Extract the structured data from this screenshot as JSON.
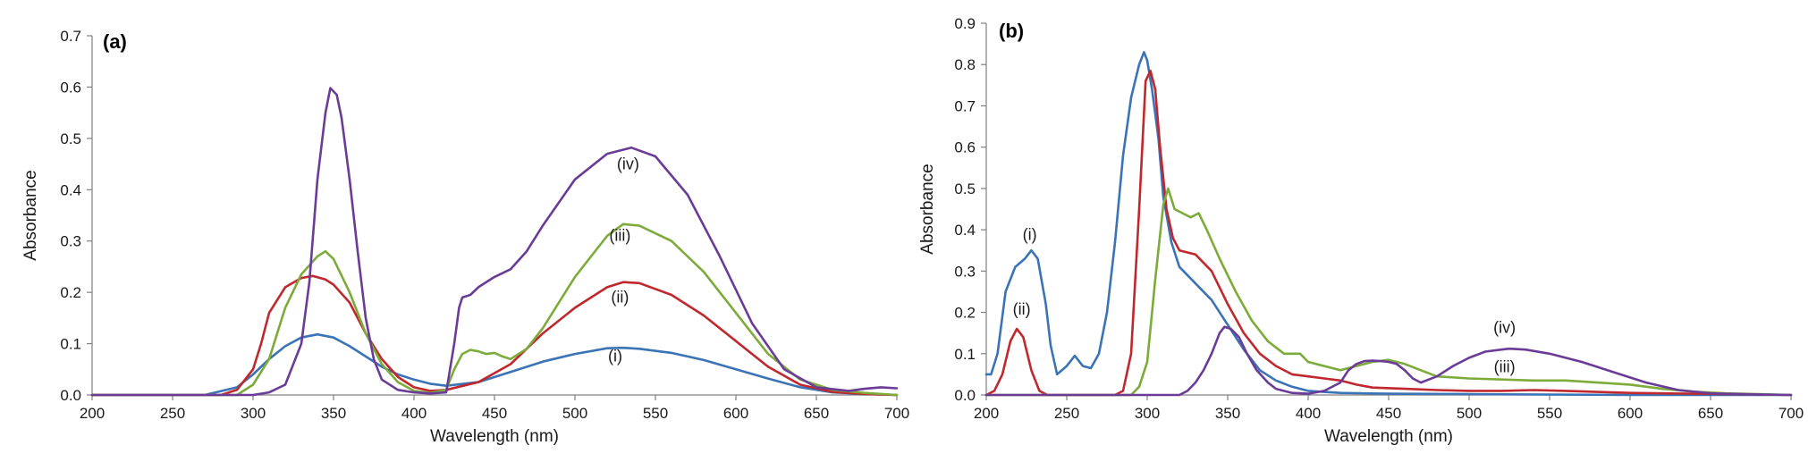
{
  "chart_data": [
    {
      "type": "line",
      "panel_label": "(a)",
      "xlabel": "Wavelength (nm)",
      "ylabel": "Absorbance",
      "xlim": [
        200,
        700
      ],
      "ylim": [
        0,
        0.7
      ],
      "xticks": [
        "200",
        "250",
        "300",
        "350",
        "400",
        "450",
        "500",
        "550",
        "600",
        "650",
        "700"
      ],
      "yticks": [
        "0.0",
        "0.1",
        "0.2",
        "0.3",
        "0.4",
        "0.5",
        "0.6",
        "0.7"
      ],
      "grid": false,
      "series": [
        {
          "name": "(i)",
          "color": "#3a73b6",
          "label_at": [
            525,
            0.065
          ],
          "x": [
            200,
            270,
            290,
            300,
            310,
            320,
            330,
            340,
            350,
            360,
            370,
            380,
            390,
            400,
            410,
            420,
            440,
            460,
            480,
            500,
            520,
            530,
            540,
            560,
            580,
            600,
            620,
            640,
            660,
            680,
            700
          ],
          "y": [
            0,
            0,
            0.015,
            0.04,
            0.07,
            0.095,
            0.112,
            0.118,
            0.112,
            0.095,
            0.075,
            0.055,
            0.04,
            0.03,
            0.022,
            0.018,
            0.025,
            0.045,
            0.065,
            0.08,
            0.091,
            0.092,
            0.09,
            0.082,
            0.068,
            0.05,
            0.032,
            0.015,
            0.005,
            0.002,
            0
          ]
        },
        {
          "name": "(ii)",
          "color": "#c0282d",
          "label_at": [
            528,
            0.18
          ],
          "x": [
            200,
            280,
            290,
            300,
            305,
            310,
            320,
            330,
            337,
            345,
            350,
            360,
            370,
            380,
            390,
            400,
            410,
            420,
            440,
            460,
            480,
            500,
            520,
            530,
            540,
            560,
            580,
            600,
            620,
            640,
            660,
            680,
            700
          ],
          "y": [
            0,
            0,
            0.01,
            0.05,
            0.1,
            0.16,
            0.21,
            0.228,
            0.232,
            0.225,
            0.215,
            0.18,
            0.12,
            0.07,
            0.035,
            0.015,
            0.008,
            0.01,
            0.025,
            0.06,
            0.12,
            0.17,
            0.21,
            0.22,
            0.218,
            0.195,
            0.155,
            0.105,
            0.055,
            0.02,
            0.006,
            0.002,
            0
          ]
        },
        {
          "name": "(iii)",
          "color": "#7cab3a",
          "label_at": [
            528,
            0.3
          ],
          "x": [
            200,
            290,
            300,
            310,
            320,
            330,
            340,
            345,
            350,
            360,
            370,
            380,
            390,
            400,
            410,
            420,
            425,
            430,
            435,
            440,
            445,
            450,
            455,
            460,
            470,
            480,
            500,
            520,
            530,
            540,
            560,
            580,
            600,
            620,
            640,
            660,
            680,
            700
          ],
          "y": [
            0,
            0,
            0.02,
            0.07,
            0.17,
            0.235,
            0.27,
            0.28,
            0.265,
            0.2,
            0.12,
            0.06,
            0.025,
            0.008,
            0.004,
            0.01,
            0.05,
            0.08,
            0.088,
            0.085,
            0.08,
            0.082,
            0.075,
            0.07,
            0.09,
            0.13,
            0.23,
            0.31,
            0.333,
            0.33,
            0.3,
            0.24,
            0.16,
            0.08,
            0.03,
            0.01,
            0.004,
            0
          ]
        },
        {
          "name": "(iv)",
          "color": "#6a3c97",
          "label_at": [
            533,
            0.44
          ],
          "x": [
            200,
            300,
            310,
            320,
            330,
            335,
            340,
            345,
            348,
            352,
            355,
            360,
            365,
            370,
            375,
            380,
            390,
            400,
            410,
            420,
            425,
            428,
            430,
            435,
            440,
            450,
            460,
            470,
            480,
            500,
            520,
            535,
            550,
            570,
            590,
            610,
            630,
            650,
            670,
            680,
            690,
            700
          ],
          "y": [
            0,
            0,
            0.005,
            0.02,
            0.1,
            0.22,
            0.42,
            0.55,
            0.598,
            0.585,
            0.54,
            0.42,
            0.28,
            0.15,
            0.07,
            0.03,
            0.01,
            0.005,
            0.003,
            0.005,
            0.1,
            0.17,
            0.19,
            0.195,
            0.21,
            0.23,
            0.245,
            0.28,
            0.33,
            0.42,
            0.47,
            0.482,
            0.465,
            0.39,
            0.27,
            0.14,
            0.05,
            0.015,
            0.008,
            0.012,
            0.015,
            0.013
          ]
        }
      ]
    },
    {
      "type": "line",
      "panel_label": "(b)",
      "xlabel": "Wavelength (nm)",
      "ylabel": "Absorbance",
      "xlim": [
        200,
        700
      ],
      "ylim": [
        0,
        0.9
      ],
      "xticks": [
        "200",
        "250",
        "300",
        "350",
        "400",
        "450",
        "500",
        "550",
        "600",
        "650",
        "700"
      ],
      "yticks": [
        "0.0",
        "0.1",
        "0.2",
        "0.3",
        "0.4",
        "0.5",
        "0.6",
        "0.7",
        "0.8",
        "0.9"
      ],
      "grid": false,
      "series": [
        {
          "name": "(i)",
          "color": "#3a73b6",
          "label_at": [
            227,
            0.375
          ],
          "x": [
            200,
            203,
            207,
            212,
            218,
            224,
            228,
            232,
            237,
            240,
            244,
            250,
            255,
            260,
            265,
            270,
            275,
            280,
            285,
            290,
            295,
            298,
            300,
            303,
            307,
            310,
            315,
            320,
            330,
            340,
            350,
            360,
            370,
            380,
            390,
            400,
            420,
            450,
            500,
            550,
            600,
            700
          ],
          "y": [
            0.05,
            0.05,
            0.1,
            0.25,
            0.31,
            0.33,
            0.35,
            0.33,
            0.22,
            0.12,
            0.05,
            0.07,
            0.095,
            0.07,
            0.065,
            0.1,
            0.2,
            0.37,
            0.58,
            0.72,
            0.8,
            0.83,
            0.81,
            0.74,
            0.62,
            0.48,
            0.37,
            0.31,
            0.27,
            0.23,
            0.17,
            0.11,
            0.06,
            0.035,
            0.02,
            0.01,
            0.005,
            0.003,
            0.002,
            0.001,
            0,
            0
          ]
        },
        {
          "name": "(ii)",
          "color": "#c0282d",
          "label_at": [
            222,
            0.195
          ],
          "x": [
            200,
            205,
            210,
            215,
            219,
            223,
            228,
            233,
            238,
            280,
            285,
            290,
            295,
            299,
            302,
            305,
            308,
            312,
            316,
            320,
            330,
            340,
            350,
            360,
            370,
            380,
            390,
            400,
            410,
            420,
            430,
            440,
            460,
            480,
            500,
            520,
            540,
            560,
            600,
            700
          ],
          "y": [
            0,
            0.01,
            0.05,
            0.13,
            0.16,
            0.14,
            0.06,
            0.01,
            0,
            0,
            0.01,
            0.1,
            0.45,
            0.76,
            0.785,
            0.74,
            0.6,
            0.45,
            0.38,
            0.35,
            0.34,
            0.3,
            0.22,
            0.15,
            0.1,
            0.07,
            0.05,
            0.045,
            0.04,
            0.035,
            0.025,
            0.018,
            0.015,
            0.012,
            0.01,
            0.01,
            0.012,
            0.01,
            0.005,
            0
          ]
        },
        {
          "name": "(iii)",
          "color": "#7cab3a",
          "label_at": [
            522,
            0.055
          ],
          "x": [
            200,
            290,
            295,
            300,
            305,
            310,
            313,
            317,
            322,
            327,
            332,
            337,
            345,
            355,
            365,
            375,
            385,
            390,
            395,
            400,
            410,
            420,
            430,
            440,
            450,
            460,
            470,
            480,
            500,
            540,
            560,
            580,
            600,
            620,
            640,
            660,
            680,
            700
          ],
          "y": [
            0,
            0,
            0.02,
            0.08,
            0.28,
            0.46,
            0.5,
            0.45,
            0.44,
            0.43,
            0.44,
            0.4,
            0.33,
            0.25,
            0.18,
            0.13,
            0.1,
            0.1,
            0.1,
            0.08,
            0.07,
            0.06,
            0.07,
            0.08,
            0.085,
            0.075,
            0.06,
            0.045,
            0.04,
            0.035,
            0.035,
            0.03,
            0.025,
            0.015,
            0.008,
            0.004,
            0.002,
            0
          ]
        },
        {
          "name": "(iv)",
          "color": "#6a3c97",
          "label_at": [
            522,
            0.15
          ],
          "x": [
            200,
            320,
            325,
            330,
            335,
            340,
            345,
            348,
            352,
            357,
            362,
            368,
            375,
            380,
            390,
            400,
            410,
            420,
            425,
            430,
            435,
            440,
            445,
            450,
            455,
            460,
            465,
            470,
            480,
            490,
            500,
            510,
            520,
            525,
            535,
            550,
            570,
            590,
            610,
            630,
            650,
            670,
            700
          ],
          "y": [
            0,
            0,
            0.01,
            0.03,
            0.06,
            0.1,
            0.15,
            0.165,
            0.16,
            0.14,
            0.1,
            0.06,
            0.03,
            0.015,
            0.005,
            0.003,
            0.01,
            0.03,
            0.06,
            0.075,
            0.082,
            0.083,
            0.082,
            0.08,
            0.075,
            0.06,
            0.04,
            0.03,
            0.045,
            0.07,
            0.09,
            0.105,
            0.11,
            0.112,
            0.11,
            0.1,
            0.08,
            0.055,
            0.03,
            0.012,
            0.004,
            0.002,
            0
          ]
        }
      ]
    }
  ]
}
